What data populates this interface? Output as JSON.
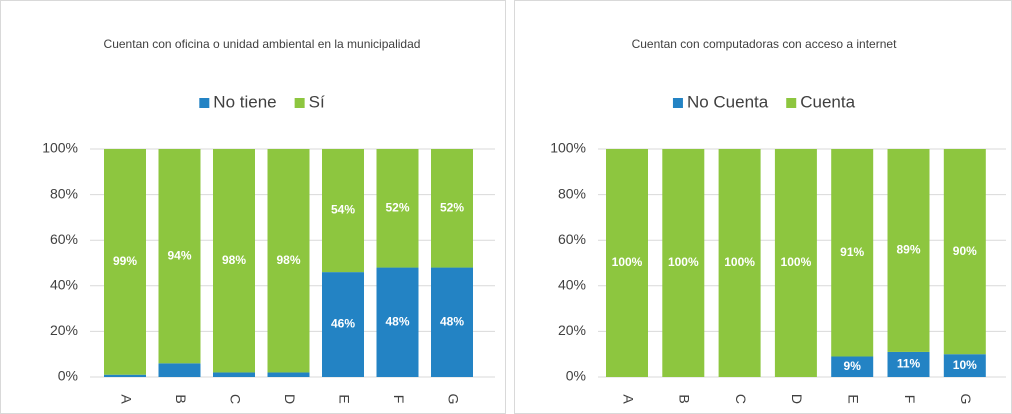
{
  "chart_data": [
    {
      "type": "stacked_bar",
      "title": "Cuentan con oficina o unidad  ambiental en la municipalidad",
      "categories": [
        "A",
        "B",
        "C",
        "D",
        "E",
        "F",
        "G"
      ],
      "series": [
        {
          "name": "No tiene",
          "color": "#2383c4",
          "values": [
            1,
            6,
            2,
            2,
            46,
            48,
            48
          ],
          "value_labels": [
            null,
            null,
            null,
            null,
            "46%",
            "48%",
            "48%"
          ]
        },
        {
          "name": "Sí",
          "color": "#8dc63f",
          "values": [
            99,
            94,
            98,
            98,
            54,
            52,
            52
          ],
          "value_labels": [
            "99%",
            "94%",
            "98%",
            "98%",
            "54%",
            "52%",
            "52%"
          ]
        }
      ],
      "ylim": [
        0,
        100
      ],
      "yticks": [
        {
          "value": 0,
          "label": "0%"
        },
        {
          "value": 20,
          "label": "20%"
        },
        {
          "value": 40,
          "label": "40%"
        },
        {
          "value": 60,
          "label": "60%"
        },
        {
          "value": 80,
          "label": "80%"
        },
        {
          "value": 100,
          "label": "100%"
        }
      ],
      "grid": true,
      "legend": "top"
    },
    {
      "type": "stacked_bar",
      "title": "Cuentan con computadoras con acceso a internet",
      "categories": [
        "A",
        "B",
        "C",
        "D",
        "E",
        "F",
        "G"
      ],
      "series": [
        {
          "name": "No Cuenta",
          "color": "#2383c4",
          "values": [
            0,
            0,
            0,
            0,
            9,
            11,
            10
          ],
          "value_labels": [
            null,
            null,
            null,
            null,
            "9%",
            "11%",
            "10%"
          ]
        },
        {
          "name": "Cuenta",
          "color": "#8dc63f",
          "values": [
            100,
            100,
            100,
            100,
            91,
            89,
            90
          ],
          "value_labels": [
            "100%",
            "100%",
            "100%",
            "100%",
            "91%",
            "89%",
            "90%"
          ]
        }
      ],
      "ylim": [
        0,
        100
      ],
      "yticks": [
        {
          "value": 0,
          "label": "0%"
        },
        {
          "value": 20,
          "label": "20%"
        },
        {
          "value": 40,
          "label": "40%"
        },
        {
          "value": 60,
          "label": "60%"
        },
        {
          "value": 80,
          "label": "80%"
        },
        {
          "value": 100,
          "label": "100%"
        }
      ],
      "grid": true,
      "legend": "top"
    }
  ]
}
